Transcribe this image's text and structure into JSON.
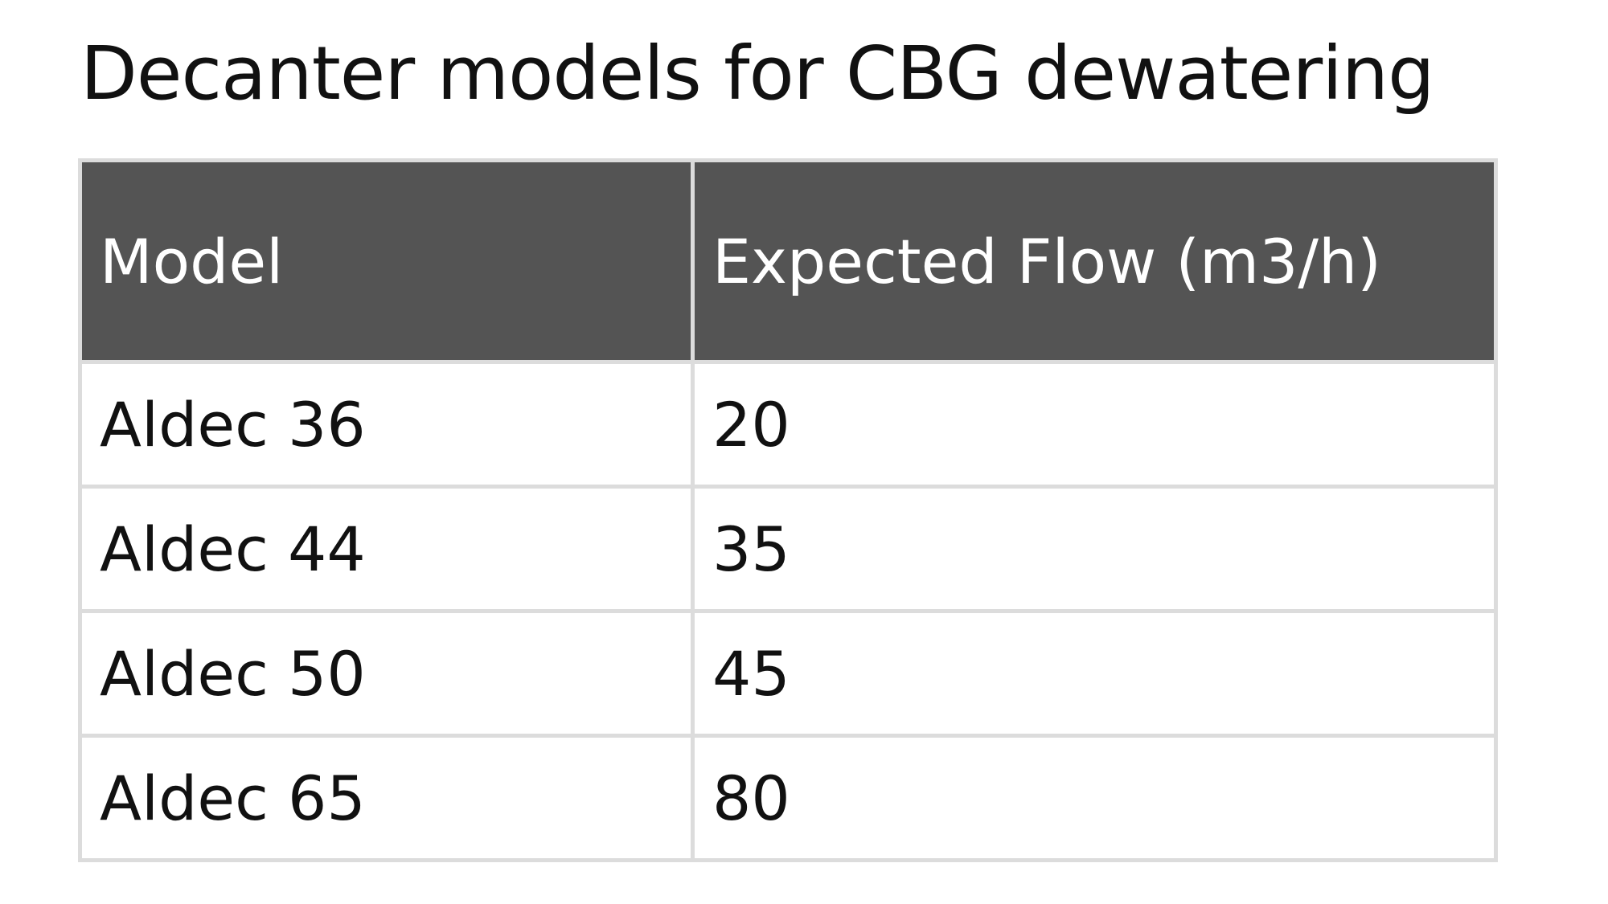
{
  "title": "Decanter models for CBG dewatering",
  "table": {
    "header": [
      "Model",
      "Expected Flow (m3/h)"
    ],
    "rows": [
      [
        "Aldec 36",
        20
      ],
      [
        "Aldec 44",
        35
      ],
      [
        "Aldec 50",
        45
      ],
      [
        "Aldec 65",
        80
      ]
    ]
  }
}
